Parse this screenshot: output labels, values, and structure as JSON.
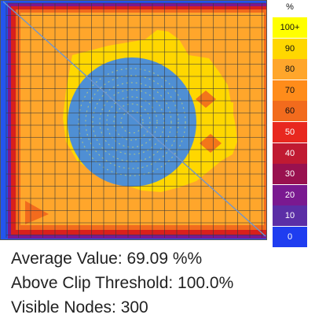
{
  "legend": {
    "unit": "%",
    "levels": [
      {
        "label": "100+",
        "color": "#ffff00",
        "text_color": "#111111"
      },
      {
        "label": "90",
        "color": "#ffd700",
        "text_color": "#111111"
      },
      {
        "label": "80",
        "color": "#ffa62b",
        "text_color": "#111111"
      },
      {
        "label": "70",
        "color": "#ff8c1a",
        "text_color": "#111111"
      },
      {
        "label": "60",
        "color": "#f26b1d",
        "text_color": "#111111"
      },
      {
        "label": "50",
        "color": "#e8281f",
        "text_color": "#ffffff"
      },
      {
        "label": "40",
        "color": "#c01a32",
        "text_color": "#ffffff"
      },
      {
        "label": "30",
        "color": "#99114f",
        "text_color": "#ffffff"
      },
      {
        "label": "20",
        "color": "#7a1990",
        "text_color": "#ffffff"
      },
      {
        "label": "10",
        "color": "#5b2ea6",
        "text_color": "#ffffff"
      },
      {
        "label": "0",
        "color": "#1f3df0",
        "text_color": "#ffffff"
      }
    ]
  },
  "stats": {
    "average": "Average Value: 69.09 %%",
    "above_clip": "Above Clip Threshold: 100.0%",
    "visible_nodes": "Visible Nodes: 300"
  },
  "colors": {
    "background": "#ffa62b",
    "highlight": "#ffd700",
    "circle": "#4f8fd4",
    "grid": "#3a3a3a"
  }
}
